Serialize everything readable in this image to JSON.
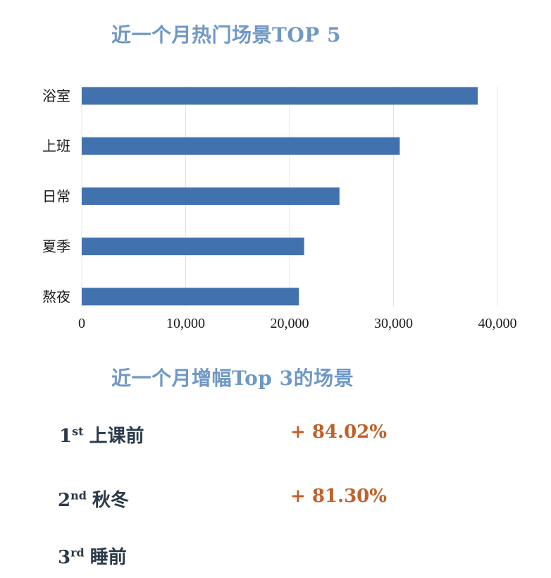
{
  "colors": {
    "title": "#6f98c6",
    "bar": "#4272ad",
    "grid": "#e4e4e4",
    "rank": "#2b3a4a",
    "pct": "#c0602a"
  },
  "title1": "近一个月热门场景TOP 5",
  "title2": "近一个月增幅Top 3的场景",
  "chart_data": {
    "type": "bar",
    "orientation": "horizontal",
    "title": "近一个月热门场景TOP 5",
    "categories": [
      "浴室",
      "上班",
      "日常",
      "夏季",
      "熬夜"
    ],
    "values": [
      38100,
      30600,
      24800,
      21400,
      20900
    ],
    "xticks": [
      "0",
      "10,000",
      "20,000",
      "30,000",
      "40,000"
    ],
    "xlim": [
      0,
      40000
    ],
    "grid": "vertical"
  },
  "ranking": [
    {
      "num": "1",
      "suffix": "st",
      "name": "上课前",
      "pct": "+ 84.02%"
    },
    {
      "num": "2",
      "suffix": "nd",
      "name": "秋冬",
      "pct": "+ 81.30%"
    },
    {
      "num": "3",
      "suffix": "rd",
      "name": "睡前",
      "pct": ""
    }
  ]
}
